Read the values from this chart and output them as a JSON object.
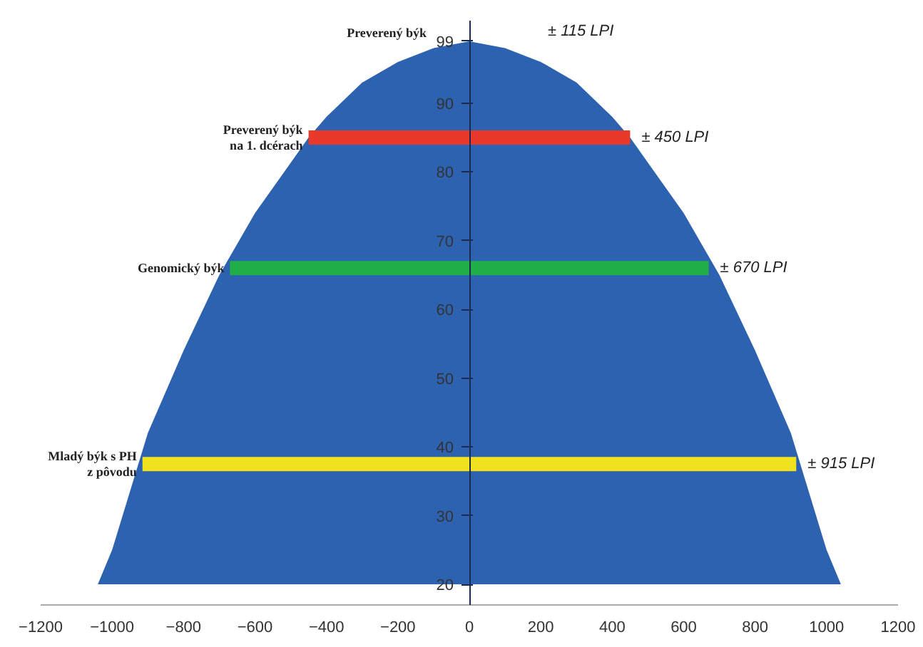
{
  "chart_data": {
    "type": "area",
    "x": [
      -1040,
      -1000,
      -900,
      -800,
      -700,
      -600,
      -450,
      -400,
      -300,
      -200,
      -100,
      0,
      100,
      200,
      300,
      400,
      450,
      600,
      700,
      800,
      900,
      1000,
      1040
    ],
    "series": [
      {
        "color": "#2d62b0",
        "values": [
          20,
          25,
          42,
          54,
          65,
          74,
          85,
          88,
          93,
          96,
          98,
          99,
          98,
          96,
          93,
          88,
          85,
          74,
          65,
          54,
          42,
          25,
          20
        ]
      },
      {
        "type": "line",
        "name": "Preverený býk\nna 1. dcérach",
        "color": "#e8392b",
        "x": [
          -450,
          450
        ],
        "values": [
          85,
          85
        ]
      },
      {
        "type": "line",
        "name": "Genomický býk",
        "color": "#1fae48",
        "x": [
          -670,
          670
        ],
        "values": [
          66,
          66
        ]
      },
      {
        "type": "line",
        "name": "Mladý býk s PH\nz pôvodu",
        "color": "#f2e21d",
        "x": [
          -915,
          915
        ],
        "values": [
          37.5,
          37.5
        ]
      }
    ],
    "annotations": [
      "Preverený býk",
      "± 115 LPI",
      {
        "text": "± 450 LPI",
        "x": 450,
        "y": 85
      },
      {
        "text": "± 670 LPI",
        "x": 670,
        "y": 66
      },
      {
        "text": "± 915 LPI",
        "x": 915,
        "y": 37.5
      }
    ],
    "xlim": [
      -1200,
      1200
    ],
    "ylim": [
      17,
      102
    ],
    "xticks": [
      -1200,
      -1000,
      -800,
      -600,
      -400,
      -200,
      0,
      200,
      400,
      600,
      800,
      1000,
      1200
    ],
    "yticks": [
      20,
      30,
      40,
      50,
      60,
      70,
      80,
      90,
      99
    ],
    "grid": false
  }
}
